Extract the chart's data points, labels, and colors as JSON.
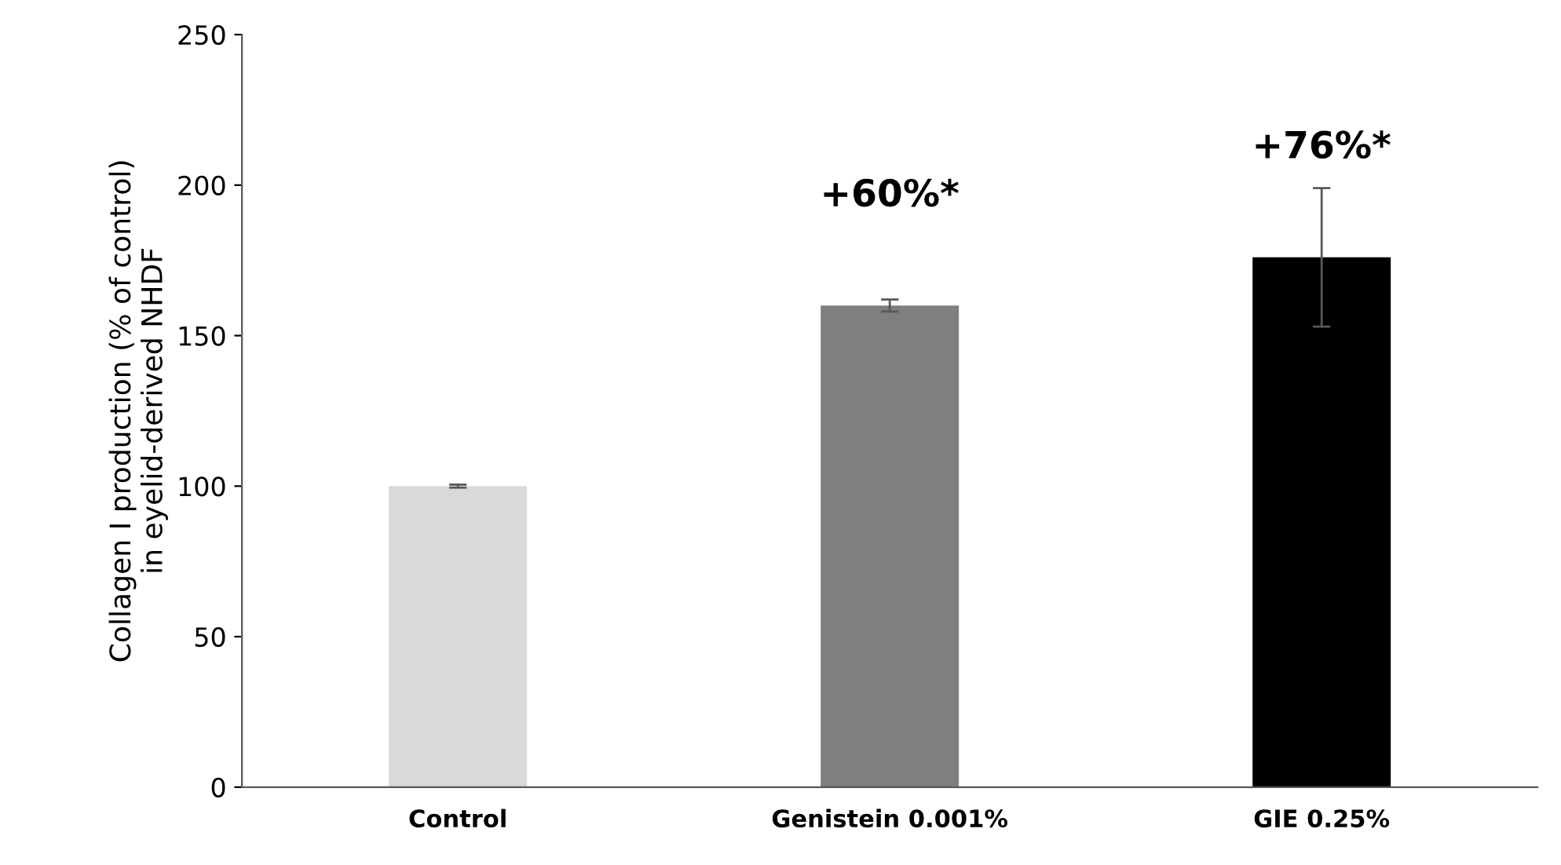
{
  "chart_data": {
    "type": "bar",
    "ylabel": "Collagen I production (% of control)\nin eyelid-derived NHDF",
    "categories": [
      "Control",
      "Genistein 0.001%",
      "GIE 0.25%"
    ],
    "values": [
      100,
      160,
      176
    ],
    "colors": [
      "#d9d9d9",
      "#7f7f7f",
      "#000000"
    ],
    "errors": [
      0.5,
      2,
      23
    ],
    "ylim": [
      0,
      250
    ],
    "yticks": [
      0,
      50,
      100,
      150,
      200,
      250
    ],
    "grid": false,
    "annotations": [
      {
        "text": "+60%*",
        "x": "Genistein 0.001%",
        "y": 160
      },
      {
        "text": "+76%*",
        "x": "GIE 0.25%",
        "y": 176
      }
    ]
  }
}
